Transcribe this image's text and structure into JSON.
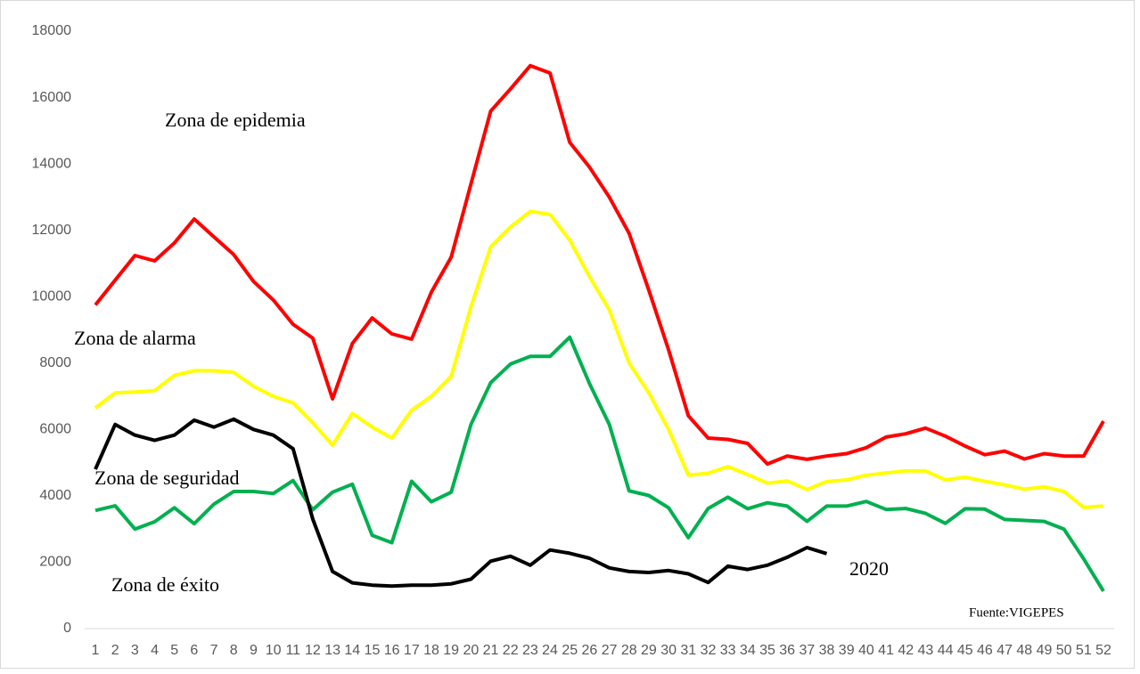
{
  "chart_data": {
    "type": "line",
    "categories": [
      "1",
      "2",
      "3",
      "4",
      "5",
      "6",
      "7",
      "8",
      "9",
      "10",
      "11",
      "12",
      "13",
      "14",
      "15",
      "16",
      "17",
      "18",
      "19",
      "20",
      "21",
      "22",
      "23",
      "24",
      "25",
      "26",
      "27",
      "28",
      "29",
      "30",
      "31",
      "32",
      "33",
      "34",
      "35",
      "36",
      "37",
      "38",
      "39",
      "40",
      "41",
      "42",
      "43",
      "44",
      "45",
      "46",
      "47",
      "48",
      "49",
      "50",
      "51",
      "52"
    ],
    "series": [
      {
        "color": "#ff0000",
        "values": [
          9750,
          10500,
          11240,
          11080,
          11620,
          12340,
          11800,
          11270,
          10460,
          9900,
          9170,
          8750,
          6920,
          8590,
          9360,
          8880,
          8720,
          10140,
          11190,
          13400,
          15590,
          16260,
          16960,
          16740,
          14650,
          13900,
          13000,
          11910,
          10200,
          8400,
          6410,
          5740,
          5700,
          5580,
          4960,
          5200,
          5100,
          5200,
          5270,
          5450,
          5770,
          5870,
          6040,
          5800,
          5500,
          5240,
          5350,
          5110,
          5270,
          5200,
          5200,
          6250
        ]
      },
      {
        "color": "#ffff00",
        "values": [
          6650,
          7100,
          7130,
          7170,
          7630,
          7770,
          7770,
          7720,
          7300,
          7000,
          6800,
          6200,
          5530,
          6480,
          6070,
          5740,
          6580,
          7000,
          7600,
          9700,
          11500,
          12100,
          12570,
          12480,
          11700,
          10600,
          9600,
          8000,
          7100,
          6000,
          4620,
          4680,
          4880,
          4640,
          4380,
          4450,
          4190,
          4430,
          4480,
          4620,
          4690,
          4750,
          4750,
          4480,
          4560,
          4440,
          4330,
          4200,
          4270,
          4130,
          3650,
          3690
        ]
      },
      {
        "color": "#00b050",
        "values": [
          3560,
          3700,
          3000,
          3220,
          3640,
          3160,
          3750,
          4130,
          4130,
          4070,
          4460,
          3580,
          4110,
          4350,
          2810,
          2590,
          4440,
          3820,
          4110,
          6150,
          7410,
          7970,
          8200,
          8200,
          8780,
          7380,
          6150,
          4150,
          4010,
          3640,
          2740,
          3620,
          3960,
          3610,
          3790,
          3690,
          3230,
          3690,
          3690,
          3830,
          3590,
          3620,
          3470,
          3170,
          3610,
          3600,
          3290,
          3260,
          3230,
          3000,
          2100,
          1130
        ]
      },
      {
        "color": "#000000",
        "values": [
          4800,
          6150,
          5830,
          5670,
          5830,
          6280,
          6070,
          6310,
          6000,
          5830,
          5420,
          3300,
          1720,
          1380,
          1310,
          1280,
          1310,
          1310,
          1350,
          1490,
          2030,
          2180,
          1910,
          2370,
          2270,
          2120,
          1830,
          1720,
          1690,
          1750,
          1650,
          1390,
          1880,
          1780,
          1910,
          2150,
          2440,
          2260,
          null,
          null,
          null,
          null,
          null,
          null,
          null,
          null,
          null,
          null,
          null,
          null,
          null,
          null
        ]
      }
    ],
    "ylim": [
      0,
      18000
    ],
    "yticks": [
      0,
      2000,
      4000,
      6000,
      8000,
      10000,
      12000,
      14000,
      16000,
      18000
    ],
    "grid": false,
    "annotations": [
      "Zona de epidemia",
      "Zona de alarma",
      "Zona de seguridad",
      "Zona de éxito",
      "2020",
      "Fuente:VIGEPES"
    ]
  }
}
